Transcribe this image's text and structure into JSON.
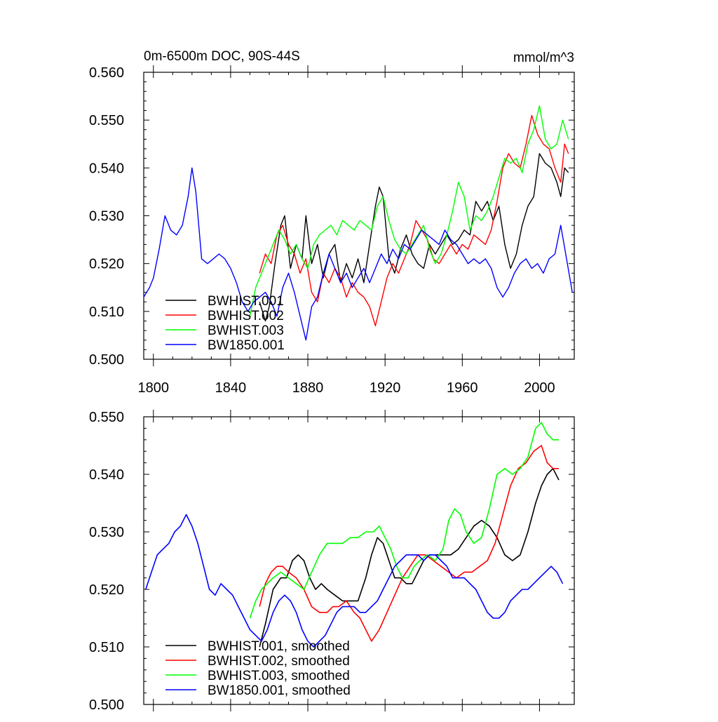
{
  "chart_data": [
    {
      "type": "line",
      "title": "0m-6500m DOC, 90S-44S",
      "units": "mmol/m^3",
      "xlim": [
        1795,
        2018
      ],
      "ylim": [
        0.5,
        0.56
      ],
      "xticks": [
        1800,
        1840,
        1880,
        1920,
        1960,
        2000
      ],
      "yticks": [
        "0.500",
        "0.510",
        "0.520",
        "0.530",
        "0.540",
        "0.550",
        "0.560"
      ],
      "legend_position": "bottom-left",
      "series": [
        {
          "name": "BWHIST.001",
          "color": "#000000",
          "x": [
            1855,
            1858,
            1860,
            1863,
            1866,
            1868,
            1871,
            1874,
            1877,
            1879,
            1882,
            1885,
            1888,
            1891,
            1894,
            1897,
            1900,
            1903,
            1906,
            1909,
            1912,
            1915,
            1917,
            1919,
            1922,
            1925,
            1928,
            1931,
            1934,
            1937,
            1940,
            1943,
            1946,
            1949,
            1952,
            1955,
            1958,
            1961,
            1964,
            1967,
            1970,
            1973,
            1976,
            1979,
            1982,
            1985,
            1988,
            1991,
            1994,
            1997,
            2000,
            2003,
            2006,
            2009,
            2011,
            2013,
            2015
          ],
          "y": [
            0.512,
            0.508,
            0.511,
            0.52,
            0.528,
            0.53,
            0.519,
            0.524,
            0.521,
            0.53,
            0.52,
            0.524,
            0.517,
            0.522,
            0.524,
            0.516,
            0.52,
            0.517,
            0.521,
            0.516,
            0.524,
            0.532,
            0.536,
            0.534,
            0.521,
            0.518,
            0.523,
            0.526,
            0.522,
            0.52,
            0.519,
            0.524,
            0.522,
            0.524,
            0.526,
            0.524,
            0.525,
            0.527,
            0.526,
            0.533,
            0.531,
            0.533,
            0.529,
            0.532,
            0.524,
            0.519,
            0.522,
            0.528,
            0.532,
            0.534,
            0.543,
            0.541,
            0.54,
            0.537,
            0.534,
            0.54,
            0.539
          ]
        },
        {
          "name": "BWHIST.002",
          "color": "#ff0000",
          "x": [
            1855,
            1858,
            1861,
            1864,
            1867,
            1870,
            1873,
            1876,
            1879,
            1882,
            1885,
            1888,
            1891,
            1894,
            1897,
            1900,
            1903,
            1906,
            1909,
            1912,
            1915,
            1918,
            1921,
            1924,
            1927,
            1930,
            1933,
            1936,
            1939,
            1942,
            1945,
            1948,
            1951,
            1954,
            1957,
            1960,
            1963,
            1966,
            1969,
            1972,
            1975,
            1978,
            1981,
            1984,
            1987,
            1990,
            1993,
            1996,
            1999,
            2002,
            2005,
            2008,
            2011,
            2013,
            2015
          ],
          "y": [
            0.518,
            0.522,
            0.52,
            0.526,
            0.528,
            0.524,
            0.522,
            0.518,
            0.521,
            0.514,
            0.512,
            0.518,
            0.516,
            0.519,
            0.517,
            0.513,
            0.516,
            0.514,
            0.513,
            0.511,
            0.507,
            0.512,
            0.517,
            0.52,
            0.518,
            0.521,
            0.524,
            0.529,
            0.527,
            0.525,
            0.521,
            0.52,
            0.522,
            0.524,
            0.522,
            0.524,
            0.523,
            0.526,
            0.525,
            0.524,
            0.527,
            0.533,
            0.54,
            0.543,
            0.541,
            0.54,
            0.545,
            0.551,
            0.547,
            0.545,
            0.544,
            0.54,
            0.537,
            0.545,
            0.543
          ]
        },
        {
          "name": "BWHIST.003",
          "color": "#00ff00",
          "x": [
            1850,
            1853,
            1856,
            1859,
            1862,
            1865,
            1868,
            1871,
            1874,
            1877,
            1880,
            1883,
            1886,
            1889,
            1892,
            1895,
            1898,
            1901,
            1904,
            1907,
            1910,
            1913,
            1916,
            1919,
            1922,
            1925,
            1928,
            1931,
            1934,
            1937,
            1940,
            1943,
            1946,
            1949,
            1952,
            1955,
            1958,
            1961,
            1964,
            1967,
            1970,
            1973,
            1976,
            1979,
            1982,
            1985,
            1988,
            1991,
            1994,
            1997,
            2000,
            2003,
            2006,
            2009,
            2012,
            2015
          ],
          "y": [
            0.509,
            0.515,
            0.518,
            0.521,
            0.524,
            0.527,
            0.525,
            0.522,
            0.524,
            0.521,
            0.519,
            0.524,
            0.526,
            0.527,
            0.528,
            0.526,
            0.529,
            0.528,
            0.527,
            0.529,
            0.528,
            0.527,
            0.532,
            0.534,
            0.529,
            0.525,
            0.523,
            0.522,
            0.524,
            0.526,
            0.528,
            0.523,
            0.52,
            0.522,
            0.526,
            0.531,
            0.537,
            0.534,
            0.527,
            0.53,
            0.529,
            0.531,
            0.534,
            0.538,
            0.542,
            0.541,
            0.542,
            0.539,
            0.545,
            0.548,
            0.553,
            0.546,
            0.544,
            0.545,
            0.55,
            0.546
          ]
        },
        {
          "name": "BW1850.001",
          "color": "#0000ff",
          "x": [
            1795,
            1798,
            1800,
            1803,
            1806,
            1809,
            1812,
            1815,
            1818,
            1820,
            1822,
            1825,
            1828,
            1831,
            1834,
            1837,
            1840,
            1843,
            1846,
            1849,
            1852,
            1855,
            1858,
            1861,
            1864,
            1867,
            1870,
            1873,
            1876,
            1879,
            1882,
            1885,
            1888,
            1891,
            1894,
            1897,
            1900,
            1903,
            1906,
            1909,
            1912,
            1915,
            1918,
            1921,
            1924,
            1927,
            1930,
            1933,
            1936,
            1939,
            1942,
            1945,
            1948,
            1951,
            1954,
            1957,
            1960,
            1963,
            1966,
            1969,
            1972,
            1975,
            1978,
            1981,
            1984,
            1987,
            1990,
            1993,
            1996,
            1999,
            2002,
            2005,
            2008,
            2011,
            2014,
            2017
          ],
          "y": [
            0.513,
            0.515,
            0.517,
            0.523,
            0.53,
            0.527,
            0.526,
            0.528,
            0.534,
            0.54,
            0.535,
            0.521,
            0.52,
            0.521,
            0.522,
            0.521,
            0.519,
            0.516,
            0.512,
            0.51,
            0.512,
            0.513,
            0.514,
            0.512,
            0.509,
            0.515,
            0.518,
            0.514,
            0.509,
            0.504,
            0.511,
            0.513,
            0.518,
            0.522,
            0.519,
            0.516,
            0.518,
            0.515,
            0.517,
            0.519,
            0.516,
            0.519,
            0.522,
            0.52,
            0.523,
            0.521,
            0.524,
            0.523,
            0.525,
            0.527,
            0.526,
            0.525,
            0.524,
            0.527,
            0.525,
            0.524,
            0.522,
            0.52,
            0.521,
            0.52,
            0.521,
            0.519,
            0.515,
            0.513,
            0.515,
            0.518,
            0.52,
            0.521,
            0.519,
            0.52,
            0.518,
            0.521,
            0.522,
            0.528,
            0.521,
            0.514
          ]
        }
      ]
    },
    {
      "type": "line",
      "xlim": [
        1795,
        2018
      ],
      "ylim": [
        0.5,
        0.55
      ],
      "xticks": [
        1800,
        1840,
        1880,
        1920,
        1960,
        2000
      ],
      "yticks": [
        "0.500",
        "0.510",
        "0.520",
        "0.530",
        "0.540",
        "0.550"
      ],
      "legend_position": "bottom-left",
      "series": [
        {
          "name": "BWHIST.001, smoothed",
          "color": "#000000",
          "x": [
            1855,
            1858,
            1862,
            1866,
            1869,
            1872,
            1875,
            1878,
            1881,
            1884,
            1887,
            1890,
            1894,
            1898,
            1902,
            1906,
            1910,
            1913,
            1916,
            1919,
            1922,
            1925,
            1928,
            1931,
            1934,
            1937,
            1940,
            1943,
            1946,
            1950,
            1954,
            1958,
            1962,
            1966,
            1970,
            1974,
            1978,
            1982,
            1986,
            1990,
            1994,
            1998,
            2001,
            2004,
            2007,
            2010
          ],
          "y": [
            0.51,
            0.514,
            0.52,
            0.522,
            0.522,
            0.525,
            0.526,
            0.525,
            0.522,
            0.52,
            0.521,
            0.52,
            0.519,
            0.518,
            0.518,
            0.518,
            0.522,
            0.526,
            0.529,
            0.528,
            0.525,
            0.522,
            0.522,
            0.521,
            0.521,
            0.523,
            0.525,
            0.526,
            0.526,
            0.526,
            0.526,
            0.527,
            0.529,
            0.531,
            0.532,
            0.531,
            0.529,
            0.526,
            0.525,
            0.526,
            0.53,
            0.535,
            0.538,
            0.54,
            0.541,
            0.539
          ]
        },
        {
          "name": "BWHIST.002, smoothed",
          "color": "#ff0000",
          "x": [
            1855,
            1858,
            1861,
            1864,
            1867,
            1870,
            1874,
            1878,
            1882,
            1886,
            1890,
            1893,
            1896,
            1900,
            1904,
            1907,
            1910,
            1913,
            1917,
            1921,
            1925,
            1929,
            1933,
            1937,
            1941,
            1945,
            1949,
            1953,
            1957,
            1961,
            1965,
            1969,
            1973,
            1977,
            1981,
            1985,
            1989,
            1993,
            1997,
            2001,
            2004,
            2007,
            2010
          ],
          "y": [
            0.517,
            0.521,
            0.523,
            0.524,
            0.524,
            0.523,
            0.522,
            0.52,
            0.517,
            0.516,
            0.516,
            0.517,
            0.517,
            0.518,
            0.516,
            0.515,
            0.513,
            0.511,
            0.513,
            0.516,
            0.519,
            0.522,
            0.524,
            0.526,
            0.526,
            0.525,
            0.524,
            0.523,
            0.522,
            0.523,
            0.523,
            0.524,
            0.525,
            0.528,
            0.533,
            0.538,
            0.541,
            0.542,
            0.544,
            0.545,
            0.542,
            0.541,
            0.541
          ]
        },
        {
          "name": "BWHIST.003, smoothed",
          "color": "#00ff00",
          "x": [
            1850,
            1853,
            1856,
            1859,
            1862,
            1866,
            1870,
            1874,
            1878,
            1882,
            1886,
            1890,
            1894,
            1898,
            1902,
            1906,
            1910,
            1914,
            1917,
            1920,
            1923,
            1926,
            1929,
            1932,
            1935,
            1938,
            1942,
            1946,
            1950,
            1953,
            1956,
            1959,
            1962,
            1966,
            1970,
            1974,
            1978,
            1982,
            1986,
            1990,
            1994,
            1998,
            2001,
            2004,
            2007,
            2010
          ],
          "y": [
            0.515,
            0.518,
            0.52,
            0.521,
            0.522,
            0.523,
            0.522,
            0.521,
            0.52,
            0.523,
            0.526,
            0.528,
            0.528,
            0.528,
            0.529,
            0.529,
            0.53,
            0.53,
            0.531,
            0.529,
            0.527,
            0.524,
            0.522,
            0.522,
            0.524,
            0.525,
            0.526,
            0.525,
            0.527,
            0.532,
            0.534,
            0.533,
            0.53,
            0.528,
            0.529,
            0.534,
            0.54,
            0.541,
            0.54,
            0.541,
            0.543,
            0.548,
            0.549,
            0.547,
            0.546,
            0.546
          ]
        },
        {
          "name": "BW1850.001, smoothed",
          "color": "#0000ff",
          "x": [
            1796,
            1799,
            1802,
            1805,
            1808,
            1811,
            1814,
            1817,
            1820,
            1823,
            1826,
            1829,
            1832,
            1835,
            1838,
            1841,
            1844,
            1847,
            1850,
            1853,
            1856,
            1859,
            1862,
            1865,
            1868,
            1871,
            1874,
            1877,
            1880,
            1883,
            1886,
            1889,
            1892,
            1895,
            1898,
            1901,
            1904,
            1907,
            1910,
            1913,
            1916,
            1919,
            1922,
            1925,
            1928,
            1931,
            1934,
            1937,
            1940,
            1943,
            1946,
            1949,
            1952,
            1955,
            1958,
            1961,
            1964,
            1967,
            1970,
            1973,
            1976,
            1979,
            1982,
            1985,
            1988,
            1991,
            1994,
            1997,
            2000,
            2003,
            2006,
            2009,
            2012
          ],
          "y": [
            0.52,
            0.523,
            0.526,
            0.527,
            0.528,
            0.53,
            0.531,
            0.533,
            0.531,
            0.528,
            0.524,
            0.52,
            0.519,
            0.521,
            0.52,
            0.519,
            0.517,
            0.515,
            0.513,
            0.512,
            0.511,
            0.513,
            0.516,
            0.518,
            0.519,
            0.518,
            0.516,
            0.513,
            0.511,
            0.51,
            0.511,
            0.512,
            0.514,
            0.516,
            0.517,
            0.517,
            0.517,
            0.516,
            0.516,
            0.517,
            0.518,
            0.52,
            0.522,
            0.524,
            0.525,
            0.526,
            0.526,
            0.526,
            0.525,
            0.526,
            0.526,
            0.525,
            0.524,
            0.522,
            0.522,
            0.522,
            0.521,
            0.52,
            0.518,
            0.516,
            0.515,
            0.515,
            0.516,
            0.518,
            0.519,
            0.52,
            0.52,
            0.521,
            0.522,
            0.523,
            0.524,
            0.523,
            0.521
          ]
        }
      ]
    }
  ]
}
